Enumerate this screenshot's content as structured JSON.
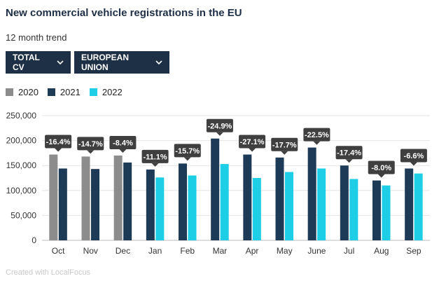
{
  "header": {
    "title": "New commercial vehicle registrations in the EU",
    "subtitle": "12 month trend"
  },
  "filters": {
    "segment": "TOTAL CV",
    "region": "EUROPEAN UNION"
  },
  "footer": "Created with LocalFocus",
  "colors": {
    "y2020": "#8c8c8c",
    "y2021": "#1d3a56",
    "y2022": "#1ecde6",
    "label_bg": "#3f3f3f",
    "grid": "#e4e4e4"
  },
  "chart_data": {
    "type": "bar",
    "title": "New commercial vehicle registrations in the EU",
    "subtitle": "12 month trend",
    "categories": [
      "Oct",
      "Nov",
      "Dec",
      "Jan",
      "Feb",
      "Mar",
      "Apr",
      "May",
      "June",
      "Jul",
      "Aug",
      "Sep"
    ],
    "series": [
      {
        "name": "2020",
        "values": [
          172000,
          168000,
          170000,
          null,
          null,
          null,
          null,
          null,
          null,
          null,
          null,
          null
        ]
      },
      {
        "name": "2021",
        "values": [
          144000,
          143000,
          156000,
          142000,
          154000,
          204000,
          172000,
          166000,
          186000,
          150000,
          120000,
          144000
        ]
      },
      {
        "name": "2022",
        "values": [
          null,
          null,
          null,
          126000,
          130000,
          153000,
          125000,
          137000,
          144000,
          123000,
          110000,
          134000
        ]
      }
    ],
    "change_labels": [
      "-16.4%",
      "-14.7%",
      "-8.4%",
      "-11.1%",
      "-15.7%",
      "-24.9%",
      "-27.1%",
      "-17.7%",
      "-22.5%",
      "-17.4%",
      "-8.0%",
      "-6.6%"
    ],
    "y_ticks": [
      0,
      50000,
      100000,
      150000,
      200000,
      250000
    ],
    "y_tick_labels": [
      "0",
      "50,000",
      "100,000",
      "150,000",
      "200,000",
      "250,000"
    ],
    "ylim": [
      0,
      250000
    ],
    "xlabel": "",
    "ylabel": "",
    "legend": "top-left",
    "grid": true
  }
}
